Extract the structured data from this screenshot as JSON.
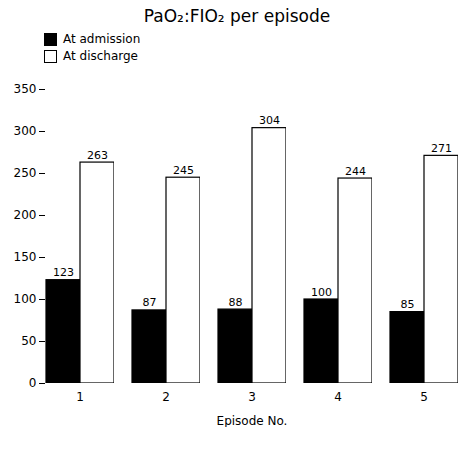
{
  "chart_data": {
    "type": "bar",
    "title": "PaO₂:FIO₂ per episode",
    "categories": [
      "1",
      "2",
      "3",
      "4",
      "5"
    ],
    "series": [
      {
        "name": "At admission",
        "color": "#000000",
        "values": [
          123,
          87,
          88,
          100,
          85
        ]
      },
      {
        "name": "At discharge",
        "color": "#ffffff",
        "values": [
          263,
          245,
          304,
          244,
          271
        ]
      }
    ],
    "xlabel": "Episode No.",
    "ylim": [
      0,
      350
    ],
    "yticks": [
      0,
      50,
      100,
      150,
      200,
      250,
      300,
      350
    ],
    "data_labels": true,
    "legend": "upper left",
    "grid": false
  }
}
